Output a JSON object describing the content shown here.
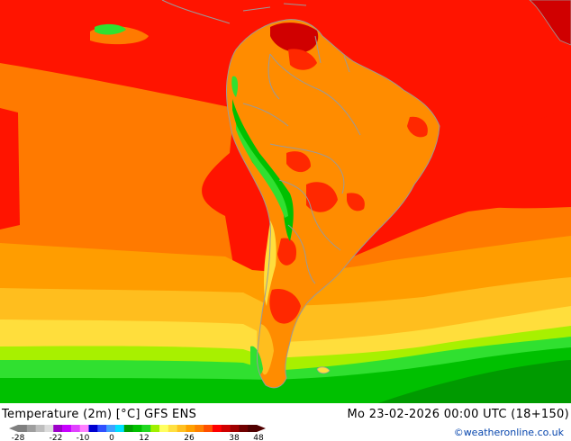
{
  "header": {
    "title": "Temperature (2m) [°C] GFS ENS",
    "valid_time": "Mo 23-02-2026 00:00 UTC (18+150)",
    "credit": "©weatheronline.co.uk"
  },
  "legend": {
    "ticks": [
      "-28",
      "-22",
      "-10",
      "0",
      "12",
      "26",
      "38",
      "48"
    ],
    "colors": [
      "#7f7f7f",
      "#9e9e9e",
      "#bebebe",
      "#dcdcdc",
      "#9c00c8",
      "#c800ff",
      "#e040ff",
      "#ff80ff",
      "#0000d0",
      "#3050ff",
      "#40a0ff",
      "#00e0ff",
      "#00a000",
      "#00c000",
      "#20d820",
      "#a0f000",
      "#ffff60",
      "#ffe040",
      "#ffc020",
      "#ffa000",
      "#ff8000",
      "#ff5000",
      "#ff0000",
      "#d00000",
      "#a00000",
      "#700000",
      "#500000"
    ]
  },
  "map": {
    "colors": {
      "ocean_red": "#ff1400",
      "ocean_orange": "#ff7a00",
      "ocean_light_orange": "#ff9d00",
      "yellow_orange": "#ffbe1e",
      "yellow": "#ffde3c",
      "pale_green": "#a8f000",
      "light_green": "#30e030",
      "green": "#00c000",
      "dark_green": "#009a00",
      "land_orange": "#ff8c00",
      "hot_red": "#ff2800",
      "dark_red": "#d00000",
      "borders": "#9a9a9a"
    }
  }
}
